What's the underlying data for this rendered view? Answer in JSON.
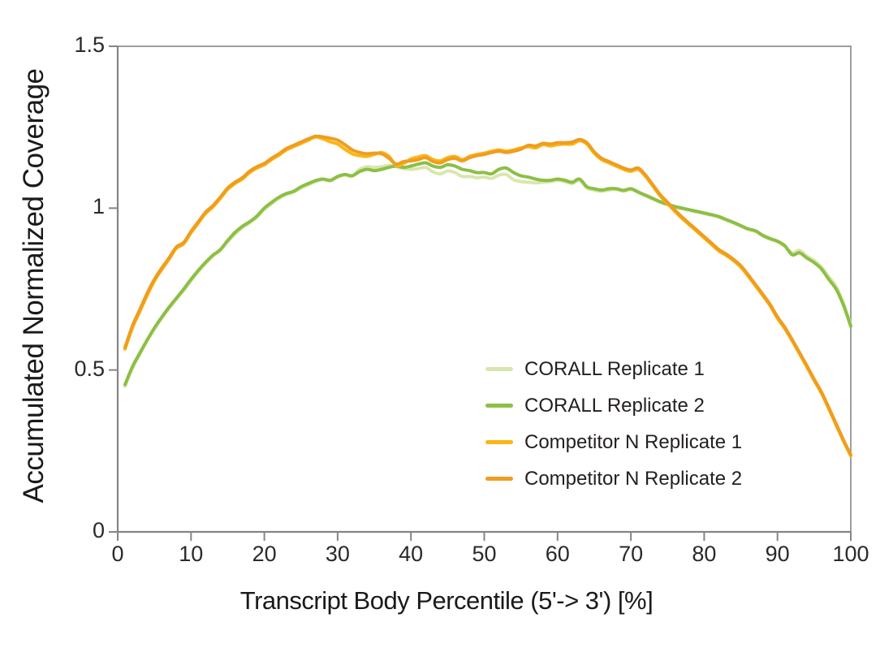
{
  "figure": {
    "x_axis_title": "Transcript Body Percentile (5'-> 3') [%]",
    "y_axis_title": "Accumulated Normalized Coverage"
  },
  "colors": {
    "frame": "#9e9e9e",
    "axis": "#858585",
    "tick": "#858585",
    "text": "#231f20",
    "background": "#ffffff"
  },
  "chart_data": {
    "type": "line",
    "title": "",
    "xlabel": "Transcript Body Percentile (5'-> 3') [%]",
    "ylabel": "Accumulated Normalized Coverage",
    "xlim": [
      0,
      100
    ],
    "ylim": [
      0,
      1.5
    ],
    "x_ticks": [
      0,
      10,
      20,
      30,
      40,
      50,
      60,
      70,
      80,
      90,
      100
    ],
    "x_tick_labels": [
      "0",
      "10",
      "20",
      "30",
      "40",
      "50",
      "60",
      "70",
      "80",
      "90",
      "100"
    ],
    "y_ticks": [
      0,
      0.5,
      1,
      1.5
    ],
    "y_tick_labels": [
      "0",
      "0.5",
      "1",
      "1.5"
    ],
    "grid": false,
    "legend_position": "inside lower-right",
    "x": [
      1,
      2,
      3,
      4,
      5,
      6,
      7,
      8,
      9,
      10,
      11,
      12,
      13,
      14,
      15,
      16,
      17,
      18,
      19,
      20,
      21,
      22,
      23,
      24,
      25,
      26,
      27,
      28,
      29,
      30,
      31,
      32,
      33,
      34,
      35,
      36,
      37,
      38,
      39,
      40,
      41,
      42,
      43,
      44,
      45,
      46,
      47,
      48,
      49,
      50,
      51,
      52,
      53,
      54,
      55,
      56,
      57,
      58,
      59,
      60,
      61,
      62,
      63,
      64,
      65,
      66,
      67,
      68,
      69,
      70,
      71,
      72,
      73,
      74,
      75,
      76,
      77,
      78,
      79,
      80,
      81,
      82,
      83,
      84,
      85,
      86,
      87,
      88,
      89,
      90,
      91,
      92,
      93,
      94,
      95,
      96,
      97,
      98,
      99,
      100
    ],
    "series": [
      {
        "name": "CORALL Replicate 1",
        "color": "#D8E7AC",
        "values": [
          0.45,
          0.506,
          0.548,
          0.59,
          0.626,
          0.66,
          0.69,
          0.718,
          0.746,
          0.776,
          0.804,
          0.83,
          0.852,
          0.87,
          0.896,
          0.92,
          0.94,
          0.955,
          0.972,
          0.996,
          1.014,
          1.03,
          1.042,
          1.05,
          1.062,
          1.072,
          1.082,
          1.088,
          1.084,
          1.096,
          1.102,
          1.1,
          1.12,
          1.128,
          1.126,
          1.128,
          1.132,
          1.128,
          1.122,
          1.12,
          1.122,
          1.126,
          1.112,
          1.106,
          1.115,
          1.11,
          1.098,
          1.098,
          1.094,
          1.096,
          1.092,
          1.102,
          1.104,
          1.088,
          1.082,
          1.08,
          1.078,
          1.08,
          1.082,
          1.086,
          1.082,
          1.076,
          1.086,
          1.062,
          1.056,
          1.052,
          1.056,
          1.058,
          1.052,
          1.058,
          1.048,
          1.038,
          1.028,
          1.018,
          1.01,
          1.003,
          0.998,
          0.993,
          0.988,
          0.983,
          0.978,
          0.972,
          0.963,
          0.954,
          0.944,
          0.934,
          0.928,
          0.914,
          0.904,
          0.896,
          0.882,
          0.862,
          0.87,
          0.852,
          0.838,
          0.818,
          0.788,
          0.758,
          0.706,
          0.64
        ]
      },
      {
        "name": "CORALL Replicate 2",
        "color": "#8CBF45",
        "values": [
          0.455,
          0.51,
          0.552,
          0.592,
          0.63,
          0.663,
          0.694,
          0.722,
          0.75,
          0.78,
          0.808,
          0.833,
          0.855,
          0.872,
          0.9,
          0.925,
          0.944,
          0.958,
          0.976,
          1.0,
          1.018,
          1.034,
          1.045,
          1.052,
          1.066,
          1.076,
          1.085,
          1.09,
          1.086,
          1.098,
          1.104,
          1.1,
          1.113,
          1.12,
          1.116,
          1.12,
          1.126,
          1.13,
          1.126,
          1.13,
          1.136,
          1.14,
          1.13,
          1.126,
          1.134,
          1.13,
          1.12,
          1.116,
          1.11,
          1.11,
          1.106,
          1.12,
          1.124,
          1.11,
          1.1,
          1.096,
          1.09,
          1.086,
          1.086,
          1.09,
          1.086,
          1.08,
          1.09,
          1.066,
          1.06,
          1.056,
          1.06,
          1.06,
          1.055,
          1.06,
          1.05,
          1.04,
          1.03,
          1.02,
          1.012,
          1.005,
          1.0,
          0.995,
          0.99,
          0.985,
          0.98,
          0.974,
          0.965,
          0.956,
          0.946,
          0.936,
          0.93,
          0.916,
          0.906,
          0.898,
          0.884,
          0.856,
          0.862,
          0.846,
          0.832,
          0.812,
          0.78,
          0.75,
          0.7,
          0.635
        ]
      },
      {
        "name": "Competitor N Replicate 1",
        "color": "#FBB616",
        "values": [
          0.565,
          0.63,
          0.68,
          0.73,
          0.775,
          0.81,
          0.842,
          0.876,
          0.89,
          0.924,
          0.954,
          0.984,
          1.004,
          1.03,
          1.058,
          1.076,
          1.09,
          1.11,
          1.124,
          1.134,
          1.15,
          1.164,
          1.18,
          1.19,
          1.2,
          1.21,
          1.22,
          1.214,
          1.205,
          1.198,
          1.182,
          1.168,
          1.162,
          1.16,
          1.166,
          1.172,
          1.16,
          1.132,
          1.138,
          1.152,
          1.158,
          1.162,
          1.15,
          1.146,
          1.156,
          1.16,
          1.15,
          1.16,
          1.166,
          1.17,
          1.176,
          1.18,
          1.176,
          1.18,
          1.186,
          1.19,
          1.186,
          1.196,
          1.192,
          1.196,
          1.198,
          1.198,
          1.208,
          1.198,
          1.17,
          1.15,
          1.14,
          1.13,
          1.12,
          1.114,
          1.12,
          1.098,
          1.068,
          1.038,
          1.014,
          0.99,
          0.968,
          0.948,
          0.928,
          0.908,
          0.888,
          0.868,
          0.854,
          0.838,
          0.818,
          0.79,
          0.76,
          0.73,
          0.698,
          0.66,
          0.628,
          0.59,
          0.55,
          0.51,
          0.468,
          0.428,
          0.38,
          0.33,
          0.28,
          0.235
        ]
      },
      {
        "name": "Competitor N Replicate 2",
        "color": "#EF9D1F",
        "values": [
          0.57,
          0.636,
          0.686,
          0.736,
          0.78,
          0.815,
          0.846,
          0.88,
          0.894,
          0.928,
          0.958,
          0.988,
          1.008,
          1.034,
          1.062,
          1.08,
          1.094,
          1.114,
          1.128,
          1.138,
          1.154,
          1.168,
          1.184,
          1.194,
          1.204,
          1.214,
          1.222,
          1.22,
          1.216,
          1.21,
          1.196,
          1.18,
          1.172,
          1.168,
          1.17,
          1.168,
          1.154,
          1.136,
          1.144,
          1.146,
          1.15,
          1.156,
          1.144,
          1.14,
          1.15,
          1.154,
          1.146,
          1.156,
          1.162,
          1.166,
          1.172,
          1.176,
          1.172,
          1.176,
          1.182,
          1.194,
          1.192,
          1.2,
          1.198,
          1.202,
          1.202,
          1.204,
          1.212,
          1.202,
          1.174,
          1.154,
          1.144,
          1.134,
          1.124,
          1.118,
          1.124,
          1.102,
          1.072,
          1.042,
          1.018,
          0.994,
          0.972,
          0.952,
          0.932,
          0.912,
          0.892,
          0.872,
          0.858,
          0.842,
          0.822,
          0.794,
          0.764,
          0.734,
          0.702,
          0.664,
          0.632,
          0.594,
          0.554,
          0.514,
          0.472,
          0.432,
          0.384,
          0.334,
          0.284,
          0.238
        ]
      }
    ]
  }
}
